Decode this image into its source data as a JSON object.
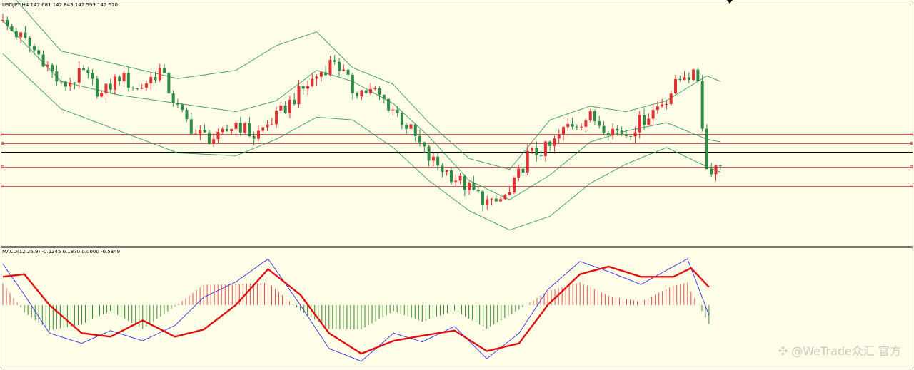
{
  "window": {
    "symbol_line": "USDJPY,H4  142.681 142.843 142.593 142.620",
    "macd_line": "MACD(12,26,9) -0.2245 0.1870 0.0000 -0.5349",
    "watermark": "✣ @WeTrade众汇 官方"
  },
  "colors": {
    "background": "#fdfde8",
    "bull_candle": "#e03030",
    "bear_candle": "#2e8b45",
    "bollinger": "#3c9a5a",
    "support_lines": "#e05050",
    "current_price_line": "#000000",
    "macd_main": "#3030e0",
    "macd_signal": "#e01010",
    "hist_positive": "#e05050",
    "hist_negative": "#3a8a2a"
  },
  "chart_data": [
    {
      "type": "candlestick",
      "title": "USDJPY,H4",
      "ohlc_last": {
        "open": 142.681,
        "high": 142.843,
        "low": 142.593,
        "close": 142.62
      },
      "ylim": [
        139.7,
        148.4
      ],
      "close_path": [
        [
          0,
          147.7
        ],
        [
          4,
          147.2
        ],
        [
          9,
          146.4
        ],
        [
          13,
          145.4
        ],
        [
          18,
          145.9
        ],
        [
          22,
          145.1
        ],
        [
          26,
          145.8
        ],
        [
          30,
          145.3
        ],
        [
          35,
          146.0
        ],
        [
          39,
          144.6
        ],
        [
          43,
          143.7
        ],
        [
          48,
          143.5
        ],
        [
          52,
          144.1
        ],
        [
          56,
          143.6
        ],
        [
          61,
          144.3
        ],
        [
          65,
          145.0
        ],
        [
          70,
          145.8
        ],
        [
          74,
          146.4
        ],
        [
          78,
          145.3
        ],
        [
          83,
          145.2
        ],
        [
          87,
          144.6
        ],
        [
          91,
          143.8
        ],
        [
          95,
          142.8
        ],
        [
          100,
          142.2
        ],
        [
          104,
          141.7
        ],
        [
          109,
          141.1
        ],
        [
          113,
          141.5
        ],
        [
          117,
          142.9
        ],
        [
          122,
          143.2
        ],
        [
          126,
          144.0
        ],
        [
          131,
          144.3
        ],
        [
          135,
          143.9
        ],
        [
          139,
          143.7
        ],
        [
          144,
          144.4
        ],
        [
          148,
          145.0
        ],
        [
          152,
          145.9
        ],
        [
          155,
          145.7
        ],
        [
          157,
          142.4
        ],
        [
          160,
          142.6
        ]
      ],
      "bollinger": {
        "upper": [
          [
            0,
            149.1
          ],
          [
            13,
            146.7
          ],
          [
            26,
            146.2
          ],
          [
            39,
            145.7
          ],
          [
            52,
            146.0
          ],
          [
            61,
            146.9
          ],
          [
            70,
            147.4
          ],
          [
            78,
            146.1
          ],
          [
            87,
            145.5
          ],
          [
            95,
            144.1
          ],
          [
            104,
            142.8
          ],
          [
            113,
            142.4
          ],
          [
            122,
            144.2
          ],
          [
            131,
            144.7
          ],
          [
            139,
            144.5
          ],
          [
            148,
            144.9
          ],
          [
            157,
            145.8
          ],
          [
            160,
            145.6
          ]
        ],
        "middle": [
          [
            0,
            147.8
          ],
          [
            13,
            145.6
          ],
          [
            26,
            145.1
          ],
          [
            39,
            144.8
          ],
          [
            52,
            144.5
          ],
          [
            61,
            144.9
          ],
          [
            70,
            146.0
          ],
          [
            78,
            145.6
          ],
          [
            87,
            144.8
          ],
          [
            95,
            143.6
          ],
          [
            104,
            142.0
          ],
          [
            113,
            141.3
          ],
          [
            122,
            142.2
          ],
          [
            131,
            143.4
          ],
          [
            139,
            143.8
          ],
          [
            148,
            144.1
          ],
          [
            157,
            143.5
          ],
          [
            160,
            143.4
          ]
        ],
        "lower": [
          [
            0,
            146.6
          ],
          [
            13,
            144.6
          ],
          [
            26,
            143.8
          ],
          [
            39,
            143.0
          ],
          [
            52,
            142.9
          ],
          [
            61,
            143.5
          ],
          [
            70,
            144.3
          ],
          [
            78,
            144.2
          ],
          [
            87,
            143.2
          ],
          [
            95,
            142.0
          ],
          [
            104,
            140.9
          ],
          [
            113,
            140.2
          ],
          [
            122,
            140.7
          ],
          [
            131,
            141.9
          ],
          [
            139,
            142.6
          ],
          [
            148,
            143.2
          ],
          [
            157,
            142.5
          ],
          [
            160,
            142.3
          ]
        ]
      },
      "horizontal_lines": [
        {
          "price": 143.7,
          "kind": "support"
        },
        {
          "price": 143.35,
          "kind": "support"
        },
        {
          "price": 143.05,
          "kind": "current"
        },
        {
          "price": 142.5,
          "kind": "support"
        },
        {
          "price": 141.8,
          "kind": "support"
        }
      ]
    },
    {
      "type": "macd",
      "title": "MACD(12,26,9)",
      "values": {
        "macd": -0.2245,
        "signal": 0.187,
        "zero": 0.0,
        "histogram": -0.5349
      },
      "ylim": [
        -1.2,
        1.0
      ],
      "signal_line": [
        [
          0,
          0.55
        ],
        [
          6,
          0.6
        ],
        [
          13,
          0.0
        ],
        [
          22,
          -0.55
        ],
        [
          30,
          -0.62
        ],
        [
          39,
          -0.3
        ],
        [
          48,
          -0.62
        ],
        [
          56,
          -0.48
        ],
        [
          65,
          0.0
        ],
        [
          74,
          0.7
        ],
        [
          83,
          0.2
        ],
        [
          91,
          -0.55
        ],
        [
          100,
          -0.95
        ],
        [
          109,
          -0.7
        ],
        [
          117,
          -0.6
        ],
        [
          126,
          -0.5
        ],
        [
          135,
          -0.9
        ],
        [
          144,
          -0.75
        ],
        [
          152,
          0.0
        ],
        [
          161,
          0.6
        ],
        [
          169,
          0.75
        ],
        [
          178,
          0.55
        ],
        [
          187,
          0.55
        ],
        [
          192,
          0.72
        ],
        [
          197,
          0.35
        ]
      ],
      "macd_line": [
        [
          0,
          0.8
        ],
        [
          6,
          0.2
        ],
        [
          13,
          -0.55
        ],
        [
          22,
          -0.75
        ],
        [
          30,
          -0.5
        ],
        [
          39,
          -0.7
        ],
        [
          48,
          -0.4
        ],
        [
          56,
          0.15
        ],
        [
          65,
          0.45
        ],
        [
          74,
          0.9
        ],
        [
          83,
          0.0
        ],
        [
          91,
          -0.85
        ],
        [
          100,
          -1.1
        ],
        [
          109,
          -0.55
        ],
        [
          117,
          -0.72
        ],
        [
          126,
          -0.42
        ],
        [
          135,
          -1.05
        ],
        [
          144,
          -0.55
        ],
        [
          152,
          0.3
        ],
        [
          161,
          0.85
        ],
        [
          169,
          0.65
        ],
        [
          178,
          0.4
        ],
        [
          187,
          0.75
        ],
        [
          191,
          0.9
        ],
        [
          197,
          -0.2
        ]
      ]
    }
  ]
}
